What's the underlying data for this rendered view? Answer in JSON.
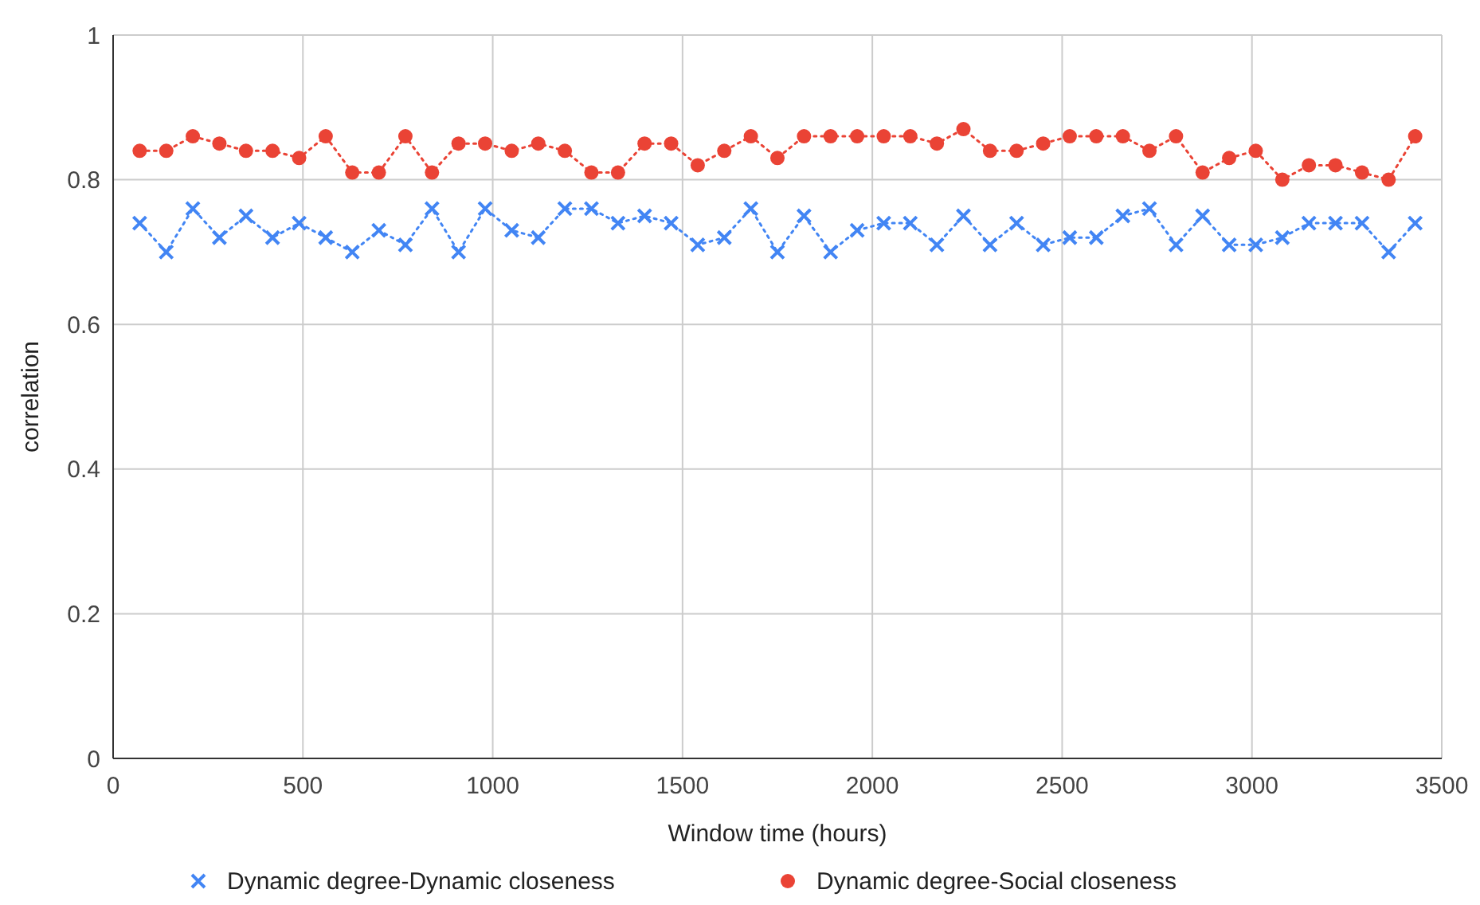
{
  "chart_data": {
    "type": "line",
    "xlabel": "Window time (hours)",
    "ylabel": "correlation",
    "x": [
      70,
      140,
      210,
      280,
      350,
      420,
      490,
      560,
      630,
      700,
      770,
      840,
      910,
      980,
      1050,
      1120,
      1190,
      1260,
      1330,
      1400,
      1470,
      1540,
      1610,
      1680,
      1750,
      1820,
      1890,
      1960,
      2030,
      2100,
      2170,
      2240,
      2310,
      2380,
      2450,
      2520,
      2590,
      2660,
      2730,
      2800,
      2870,
      2940,
      3010,
      3080,
      3150,
      3220,
      3290,
      3360,
      3430
    ],
    "series": [
      {
        "name": "Dynamic degree-Dynamic closeness",
        "color": "#4285f4",
        "marker": "cross",
        "values": [
          0.74,
          0.7,
          0.76,
          0.72,
          0.75,
          0.72,
          0.74,
          0.72,
          0.7,
          0.73,
          0.71,
          0.76,
          0.7,
          0.76,
          0.73,
          0.72,
          0.76,
          0.76,
          0.74,
          0.75,
          0.74,
          0.71,
          0.72,
          0.76,
          0.7,
          0.75,
          0.7,
          0.73,
          0.74,
          0.74,
          0.71,
          0.75,
          0.71,
          0.74,
          0.71,
          0.72,
          0.72,
          0.75,
          0.76,
          0.71,
          0.75,
          0.71,
          0.71,
          0.72,
          0.74,
          0.74,
          0.74,
          0.7,
          0.74
        ]
      },
      {
        "name": "Dynamic degree-Social closeness",
        "color": "#ea4335",
        "marker": "circle",
        "values": [
          0.84,
          0.84,
          0.86,
          0.85,
          0.84,
          0.84,
          0.83,
          0.86,
          0.81,
          0.81,
          0.86,
          0.81,
          0.85,
          0.85,
          0.84,
          0.85,
          0.84,
          0.81,
          0.81,
          0.85,
          0.85,
          0.82,
          0.84,
          0.86,
          0.83,
          0.86,
          0.86,
          0.86,
          0.86,
          0.86,
          0.85,
          0.87,
          0.84,
          0.84,
          0.85,
          0.86,
          0.86,
          0.86,
          0.84,
          0.86,
          0.81,
          0.83,
          0.84,
          0.8,
          0.82,
          0.82,
          0.81,
          0.8,
          0.86
        ]
      }
    ],
    "xlim": [
      0,
      3500
    ],
    "xticks": [
      0,
      500,
      1000,
      1500,
      2000,
      2500,
      3000,
      3500
    ],
    "ylim": [
      0,
      1
    ],
    "yticks": [
      0,
      0.2,
      0.4,
      0.6,
      0.8,
      1
    ],
    "grid": true,
    "legend": "bottom",
    "line_style": "dotted"
  }
}
